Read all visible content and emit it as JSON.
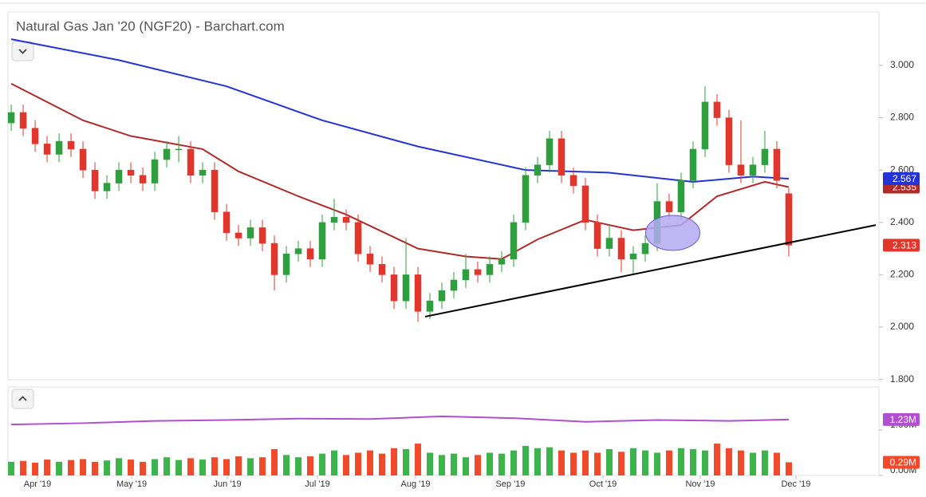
{
  "chart_data": {
    "type": "candlestick",
    "title": "Natural Gas Jan '20 (NGF20) - Barchart.com",
    "up_color": "#2f9e3f",
    "down_color": "#e0362c",
    "x": [
      0,
      1,
      2,
      3,
      4,
      5,
      6,
      7,
      8,
      9,
      10,
      11,
      12,
      13,
      14,
      15,
      16,
      17,
      18,
      19,
      20,
      21,
      22,
      23,
      24,
      25,
      26,
      27,
      28,
      29,
      30,
      31,
      32,
      33,
      34,
      35,
      36,
      37,
      38,
      39,
      40,
      41,
      42,
      43,
      44,
      45,
      46,
      47,
      48,
      49,
      50,
      51,
      52,
      53,
      54,
      55,
      56,
      57,
      58,
      59,
      60,
      61,
      62,
      63,
      64,
      65
    ],
    "open": [
      2.78,
      2.82,
      2.76,
      2.7,
      2.66,
      2.71,
      2.68,
      2.6,
      2.52,
      2.55,
      2.6,
      2.58,
      2.55,
      2.64,
      2.68,
      2.68,
      2.58,
      2.6,
      2.44,
      2.36,
      2.34,
      2.38,
      2.32,
      2.2,
      2.28,
      2.3,
      2.26,
      2.4,
      2.42,
      2.4,
      2.28,
      2.24,
      2.2,
      2.1,
      2.2,
      2.06,
      2.1,
      2.14,
      2.18,
      2.22,
      2.2,
      2.24,
      2.26,
      2.4,
      2.58,
      2.62,
      2.72,
      2.58,
      2.54,
      2.4,
      2.3,
      2.34,
      2.26,
      2.28,
      2.32,
      2.48,
      2.44,
      2.56,
      2.68,
      2.86,
      2.8,
      2.62,
      2.58,
      2.62,
      2.68,
      2.51
    ],
    "high": [
      2.85,
      2.85,
      2.79,
      2.73,
      2.74,
      2.74,
      2.71,
      2.63,
      2.58,
      2.63,
      2.63,
      2.61,
      2.67,
      2.71,
      2.73,
      2.71,
      2.63,
      2.63,
      2.47,
      2.39,
      2.41,
      2.41,
      2.35,
      2.31,
      2.33,
      2.33,
      2.43,
      2.49,
      2.45,
      2.43,
      2.31,
      2.27,
      2.23,
      2.34,
      2.23,
      2.13,
      2.17,
      2.21,
      2.28,
      2.25,
      2.27,
      2.29,
      2.43,
      2.61,
      2.65,
      2.75,
      2.75,
      2.61,
      2.57,
      2.43,
      2.39,
      2.37,
      2.31,
      2.35,
      2.55,
      2.51,
      2.59,
      2.71,
      2.92,
      2.89,
      2.83,
      2.79,
      2.65,
      2.75,
      2.71,
      2.53
    ],
    "low": [
      2.75,
      2.73,
      2.67,
      2.63,
      2.63,
      2.65,
      2.57,
      2.49,
      2.49,
      2.52,
      2.55,
      2.52,
      2.52,
      2.61,
      2.63,
      2.55,
      2.55,
      2.41,
      2.33,
      2.31,
      2.31,
      2.29,
      2.14,
      2.17,
      2.25,
      2.23,
      2.23,
      2.37,
      2.37,
      2.25,
      2.21,
      2.17,
      2.07,
      2.07,
      2.02,
      2.03,
      2.07,
      2.11,
      2.15,
      2.17,
      2.17,
      2.21,
      2.23,
      2.37,
      2.55,
      2.59,
      2.55,
      2.51,
      2.37,
      2.27,
      2.27,
      2.21,
      2.2,
      2.25,
      2.29,
      2.41,
      2.41,
      2.53,
      2.65,
      2.77,
      2.59,
      2.55,
      2.55,
      2.59,
      2.53,
      2.27
    ],
    "close": [
      2.82,
      2.76,
      2.7,
      2.66,
      2.71,
      2.68,
      2.6,
      2.52,
      2.55,
      2.6,
      2.58,
      2.55,
      2.64,
      2.68,
      2.68,
      2.58,
      2.6,
      2.44,
      2.36,
      2.34,
      2.38,
      2.32,
      2.2,
      2.28,
      2.3,
      2.26,
      2.4,
      2.42,
      2.4,
      2.28,
      2.24,
      2.2,
      2.1,
      2.2,
      2.06,
      2.1,
      2.14,
      2.18,
      2.22,
      2.2,
      2.24,
      2.26,
      2.4,
      2.58,
      2.62,
      2.72,
      2.58,
      2.54,
      2.4,
      2.3,
      2.34,
      2.26,
      2.28,
      2.32,
      2.48,
      2.44,
      2.56,
      2.68,
      2.86,
      2.8,
      2.62,
      2.58,
      2.62,
      2.68,
      2.56,
      2.313
    ],
    "close_color": "#e0362c",
    "moving_averages": [
      {
        "color": "#2433d6",
        "x": [
          0,
          9,
          18,
          26,
          34,
          43,
          50,
          57,
          62,
          65
        ],
        "values": [
          3.1,
          3.02,
          2.92,
          2.79,
          2.69,
          2.6,
          2.59,
          2.555,
          2.575,
          2.567
        ]
      },
      {
        "color": "#b02a2a",
        "x": [
          0,
          6,
          10,
          16,
          19,
          24,
          28,
          34,
          38,
          41,
          44,
          48,
          52,
          56,
          59,
          63,
          65
        ],
        "values": [
          2.93,
          2.79,
          2.73,
          2.68,
          2.595,
          2.5,
          2.43,
          2.3,
          2.27,
          2.26,
          2.335,
          2.41,
          2.37,
          2.39,
          2.5,
          2.555,
          2.535
        ]
      }
    ],
    "trendline": {
      "color": "#000000",
      "x": [
        34.6,
        72.27
      ],
      "y": [
        2.04,
        2.39
      ]
    },
    "highlight": {
      "color": "#b3aaf2",
      "x": 55.3,
      "y": 2.36,
      "rx": 2.27,
      "ry": 0.067
    },
    "xlim": [
      -0.27,
      72.27
    ],
    "xticks": [
      {
        "value": 2.2,
        "label": "Apr '19"
      },
      {
        "value": 10.07,
        "label": "May '19"
      },
      {
        "value": 18.07,
        "label": "Jun '19"
      },
      {
        "value": 25.6,
        "label": "Jul '19"
      },
      {
        "value": 33.8,
        "label": "Aug '19"
      },
      {
        "value": 41.73,
        "label": "Sep '19"
      },
      {
        "value": 49.47,
        "label": "Oct '19"
      },
      {
        "value": 57.6,
        "label": "Nov '19"
      },
      {
        "value": 65.6,
        "label": "Dec '19"
      }
    ],
    "ylim": [
      1.799,
      3.204
    ],
    "yticks": [
      {
        "value": 3.0,
        "label": "3.000"
      },
      {
        "value": 2.8,
        "label": "2.800"
      },
      {
        "value": 2.6,
        "label": "2.600"
      },
      {
        "value": 2.4,
        "label": "2.400"
      },
      {
        "value": 2.2,
        "label": "2.200"
      },
      {
        "value": 2.0,
        "label": "2.000"
      },
      {
        "value": 1.8,
        "label": "1.800"
      }
    ],
    "volume": {
      "values": [
        0.3,
        0.32,
        0.28,
        0.35,
        0.3,
        0.34,
        0.36,
        0.3,
        0.33,
        0.38,
        0.35,
        0.3,
        0.36,
        0.4,
        0.34,
        0.38,
        0.35,
        0.4,
        0.36,
        0.42,
        0.38,
        0.4,
        0.58,
        0.45,
        0.4,
        0.42,
        0.48,
        0.55,
        0.45,
        0.5,
        0.55,
        0.48,
        0.6,
        0.58,
        0.7,
        0.5,
        0.45,
        0.48,
        0.4,
        0.45,
        0.5,
        0.48,
        0.55,
        0.65,
        0.6,
        0.62,
        0.55,
        0.5,
        0.55,
        0.5,
        0.58,
        0.52,
        0.6,
        0.55,
        0.5,
        0.55,
        0.6,
        0.58,
        0.55,
        0.7,
        0.6,
        0.55,
        0.5,
        0.55,
        0.5,
        0.29
      ],
      "value_labels": {
        "65": "0.29M"
      },
      "up_color": "#3cb44b",
      "down_color": "#f04a2a"
    },
    "volume_ma": {
      "color": "#b04fd0",
      "x": [
        0,
        6,
        12,
        18,
        24,
        30,
        36,
        42,
        48,
        54,
        60,
        65
      ],
      "values": [
        1.12,
        1.15,
        1.2,
        1.22,
        1.25,
        1.24,
        1.3,
        1.26,
        1.18,
        1.22,
        1.2,
        1.23
      ],
      "value_labels": {
        "11": "1.23M"
      }
    },
    "vlim": [
      0,
      1.947
    ],
    "vticks": [
      {
        "value": 1,
        "label": "1.00M"
      },
      {
        "value": 0,
        "label": "0.00M"
      }
    ]
  }
}
